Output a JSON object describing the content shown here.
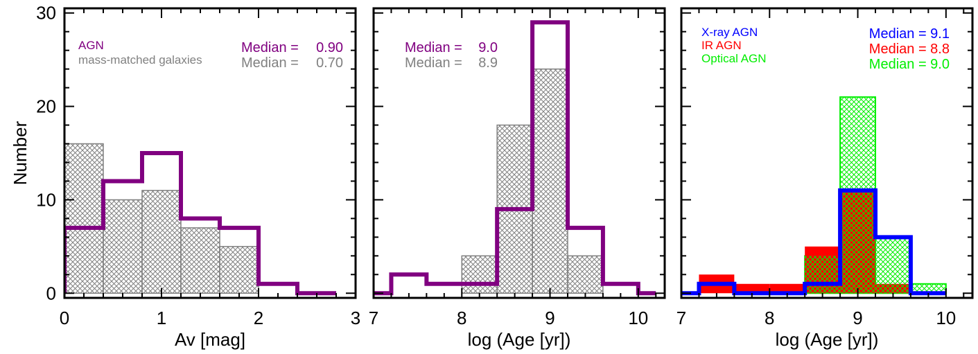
{
  "figure": {
    "ylabel": "Number",
    "colors": {
      "agn": "#800080",
      "galaxies": "#808080",
      "xray": "#0000ff",
      "ir": "#ff0000",
      "optical": "#00ee00",
      "axis": "#000000"
    }
  },
  "chart_data": [
    {
      "type": "bar",
      "subtype": "step-histogram",
      "xlabel": "Av [mag]",
      "ylabel": "Number",
      "xlim": [
        0,
        3
      ],
      "ylim": [
        -0.5,
        30.5
      ],
      "xticks": [
        "0",
        "1",
        "2",
        "3"
      ],
      "yticks": [
        "0",
        "10",
        "20",
        "30"
      ],
      "bin_edges": [
        0.0,
        0.4,
        0.8,
        1.2,
        1.6,
        2.0,
        2.4,
        2.8
      ],
      "series": [
        {
          "name": "AGN",
          "style": "step",
          "color": "#800080",
          "values": [
            7,
            12,
            15,
            8,
            7,
            1,
            0
          ]
        },
        {
          "name": "mass-matched galaxies",
          "style": "hatched",
          "color": "#808080",
          "values": [
            16,
            10,
            11,
            7,
            5,
            0,
            0
          ]
        }
      ],
      "annotations": [
        {
          "label": "Median =",
          "value": "0.90",
          "color": "#800080"
        },
        {
          "label": "Median =",
          "value": "0.70",
          "color": "#808080"
        }
      ]
    },
    {
      "type": "bar",
      "subtype": "step-histogram",
      "xlabel": "log (Age [yr])",
      "xlim": [
        7,
        10.3
      ],
      "ylim": [
        -0.5,
        30.5
      ],
      "xticks": [
        "7",
        "8",
        "9",
        "10"
      ],
      "bin_edges": [
        7.0,
        7.2,
        7.6,
        8.0,
        8.4,
        8.8,
        9.2,
        9.6,
        10.0,
        10.2
      ],
      "series": [
        {
          "name": "AGN",
          "style": "step",
          "color": "#800080",
          "values": [
            0,
            2,
            1,
            1,
            9,
            29,
            7,
            1,
            0
          ]
        },
        {
          "name": "mass-matched galaxies",
          "style": "hatched",
          "color": "#808080",
          "values": [
            0,
            0,
            0,
            4,
            18,
            24,
            4,
            0,
            0
          ]
        }
      ],
      "annotations": [
        {
          "label": "Median =",
          "value": "9.0",
          "color": "#800080"
        },
        {
          "label": "Median =",
          "value": "8.9",
          "color": "#808080"
        }
      ]
    },
    {
      "type": "bar",
      "subtype": "step-histogram",
      "xlabel": "log (Age [yr])",
      "xlim": [
        7,
        10.3
      ],
      "ylim": [
        -0.5,
        30.5
      ],
      "xticks": [
        "7",
        "8",
        "9",
        "10"
      ],
      "legend": [
        "X-ray AGN",
        "IR AGN",
        "Optical AGN"
      ],
      "bin_edges": [
        7.2,
        7.6,
        8.0,
        8.4,
        8.8,
        9.2,
        9.6,
        10.0
      ],
      "series": [
        {
          "name": "Optical AGN",
          "style": "hatched",
          "color": "#00ee00",
          "values": [
            0,
            0,
            0,
            4,
            21,
            6,
            1
          ]
        },
        {
          "name": "IR AGN",
          "style": "filled",
          "color": "#ff0000",
          "values": [
            2,
            1,
            1,
            5,
            11,
            1,
            0
          ]
        },
        {
          "name": "X-ray AGN",
          "style": "step",
          "color": "#0000ff",
          "values": [
            1,
            0,
            0,
            1,
            11,
            6,
            0
          ]
        }
      ],
      "step_extent": {
        "X-ray AGN": [
          7.0,
          9.8
        ],
        "IR AGN": [
          7.2,
          9.6
        ],
        "Optical AGN": [
          8.4,
          10.0
        ]
      },
      "annotations": [
        {
          "label": "Median = 9.1",
          "color": "#0000ff"
        },
        {
          "label": "Median = 8.8",
          "color": "#ff0000"
        },
        {
          "label": "Median = 9.0",
          "color": "#00ee00"
        }
      ]
    }
  ]
}
